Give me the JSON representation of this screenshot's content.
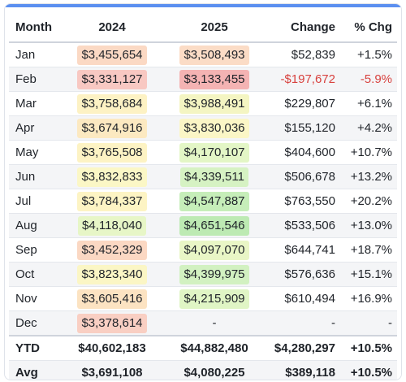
{
  "headers": {
    "month": "Month",
    "y2024": "2024",
    "y2025": "2025",
    "change": "Change",
    "pct": "% Chg"
  },
  "rows": [
    {
      "month": "Jan",
      "v2024": "$3,455,654",
      "c2024": "#fbd9c4",
      "v2025": "$3,508,493",
      "c2025": "#fbdcc6",
      "change": "$52,839",
      "pct": "+1.5%",
      "neg": false
    },
    {
      "month": "Feb",
      "v2024": "$3,331,127",
      "c2024": "#f8c8c2",
      "v2025": "$3,133,455",
      "c2025": "#f4b3b3",
      "change": "-$197,672",
      "pct": "-5.9%",
      "neg": true
    },
    {
      "month": "Mar",
      "v2024": "$3,758,684",
      "c2024": "#fdf2c4",
      "v2025": "$3,988,491",
      "c2025": "#f4f5c2",
      "change": "$229,807",
      "pct": "+6.1%",
      "neg": false
    },
    {
      "month": "Apr",
      "v2024": "$3,674,916",
      "c2024": "#fce9c1",
      "v2025": "$3,830,036",
      "c2025": "#fbf6c6",
      "change": "$155,120",
      "pct": "+4.2%",
      "neg": false
    },
    {
      "month": "May",
      "v2024": "$3,765,508",
      "c2024": "#fdf3c4",
      "v2025": "$4,170,107",
      "c2025": "#e3f6c6",
      "change": "$404,600",
      "pct": "+10.7%",
      "neg": false
    },
    {
      "month": "Jun",
      "v2024": "$3,832,833",
      "c2024": "#fbf7c6",
      "v2025": "$4,339,511",
      "c2025": "#d6f2c3",
      "change": "$506,678",
      "pct": "+13.2%",
      "neg": false
    },
    {
      "month": "Jul",
      "v2024": "$3,784,337",
      "c2024": "#fdf4c4",
      "v2025": "$4,547,887",
      "c2025": "#c6eeb9",
      "change": "$763,550",
      "pct": "+20.2%",
      "neg": false
    },
    {
      "month": "Aug",
      "v2024": "$4,118,040",
      "c2024": "#e7f6c7",
      "v2025": "$4,651,546",
      "c2025": "#bdeab3",
      "change": "$533,506",
      "pct": "+13.0%",
      "neg": false
    },
    {
      "month": "Sep",
      "v2024": "$3,452,329",
      "c2024": "#fbd8c3",
      "v2025": "$4,097,070",
      "c2025": "#e9f6c6",
      "change": "$644,741",
      "pct": "+18.7%",
      "neg": false
    },
    {
      "month": "Oct",
      "v2024": "$3,823,340",
      "c2024": "#fbf6c5",
      "v2025": "$4,399,975",
      "c2025": "#d2f1c1",
      "change": "$576,636",
      "pct": "+15.1%",
      "neg": false
    },
    {
      "month": "Nov",
      "v2024": "$3,605,416",
      "c2024": "#fce3c2",
      "v2025": "$4,215,909",
      "c2025": "#e0f5c5",
      "change": "$610,494",
      "pct": "+16.9%",
      "neg": false
    },
    {
      "month": "Dec",
      "v2024": "$3,378,614",
      "c2024": "#f9cfc3",
      "v2025": "-",
      "c2025": "",
      "change": "-",
      "pct": "-",
      "neg": false
    }
  ],
  "totals": [
    {
      "label": "YTD",
      "v2024": "$40,602,183",
      "v2025": "$44,882,480",
      "change": "$4,280,297",
      "pct": "+10.5%"
    },
    {
      "label": "Avg",
      "v2024": "$3,691,108",
      "v2025": "$4,080,225",
      "change": "$389,118",
      "pct": "+10.5%"
    }
  ],
  "colors": {
    "accent": "#5b8ff0",
    "negative": "#d8423f"
  }
}
